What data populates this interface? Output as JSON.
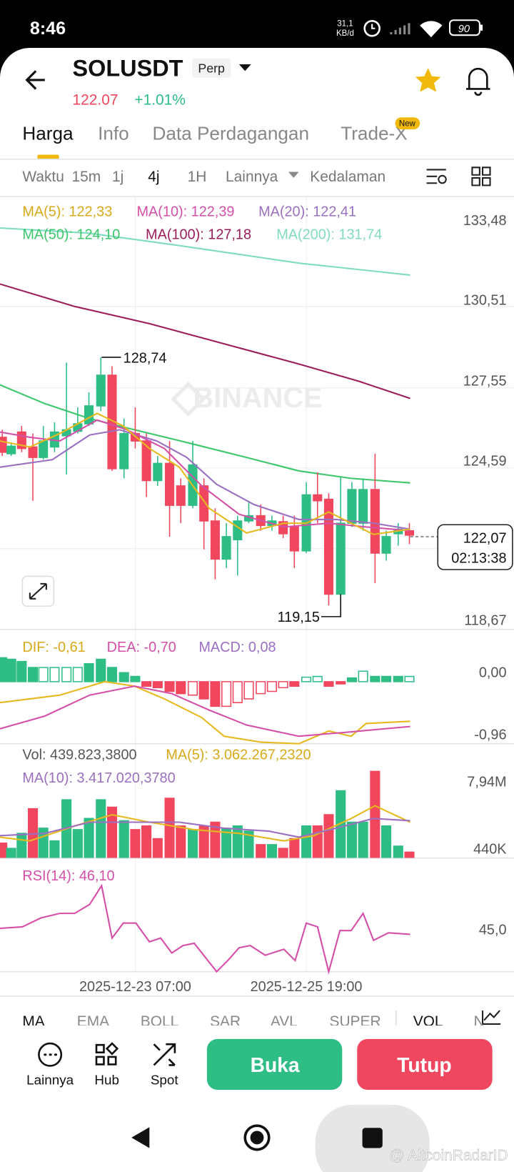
{
  "status_bar": {
    "time": "8:46",
    "speed_value": "31,1",
    "speed_unit": "KB/d",
    "battery": "90"
  },
  "header": {
    "symbol": "SOLUSDT",
    "contract": "Perp",
    "price": "122.07",
    "change": "+1.01%"
  },
  "tabs": [
    "Harga",
    "Info",
    "Data Perdagangan",
    "Trade-X"
  ],
  "new_badge": "New",
  "toolbar": {
    "interval_label": "Waktu",
    "intervals": [
      "15m",
      "1j",
      "4j",
      "1H"
    ],
    "more": "Lainnya",
    "depth": "Kedalaman"
  },
  "chart": {
    "ma": [
      "MA(5): 122,33",
      "MA(10): 122,39",
      "MA(20): 122,41",
      "MA(50): 124,10",
      "MA(100): 127,18",
      "MA(200): 131,74"
    ],
    "price_axis": [
      "133,48",
      "130,51",
      "127,55",
      "124,59",
      "118,67"
    ],
    "high": "128,74",
    "low": "119,15",
    "last_price": "122,07",
    "countdown": "02:13:38",
    "watermark": "BINANCE"
  },
  "macd": {
    "dif": "DIF: -0,61",
    "dea": "DEA: -0,70",
    "macd": "MACD: 0,08",
    "axis": [
      "0,00",
      "-0,96"
    ]
  },
  "volume": {
    "vol": "Vol: 439.823,3800",
    "ma5": "MA(5): 3.062.267,2320",
    "ma10": "MA(10): 3.417.020,3780",
    "axis": [
      "7,94M",
      "440K"
    ]
  },
  "rsi": {
    "label": "RSI(14): 46,10",
    "axis": [
      "45,0"
    ]
  },
  "time_axis": [
    "2025-12-23 07:00",
    "2025-12-25 19:00"
  ],
  "indicators": [
    "MA",
    "EMA",
    "BOLL",
    "SAR",
    "AVL",
    "SUPER",
    "VOL"
  ],
  "actions": [
    "Lainnya",
    "Hub",
    "Spot"
  ],
  "buttons": {
    "open": "Buka",
    "close": "Tutup"
  },
  "watermark": "@ AltcoinRadarID"
}
